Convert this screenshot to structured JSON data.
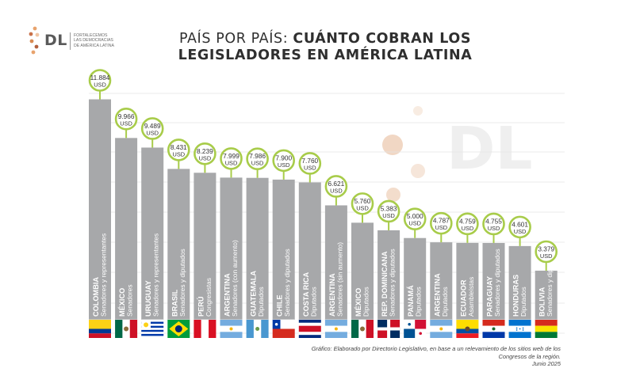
{
  "logo": {
    "mark": "DL",
    "lines": [
      "Fortalecemos",
      "las democracias",
      "de América Latina"
    ]
  },
  "title": {
    "light": "PAÍS POR PAÍS:",
    "bold_1": "CUÁNTO COBRAN LOS",
    "bold_2": "LEGISLADORES EN AMÉRICA LATINA"
  },
  "watermark": "DL",
  "footer": {
    "source": "Gráfico: Elaborado por Directorio Legislativo, en base a un relevamiento de los sitios web de los Congresos de la región.",
    "date": "Junio 2025"
  },
  "colors": {
    "bar": "#a7a8aa",
    "bubble_border": "#a8cc4a",
    "label_text": "#ffffff",
    "grid": "#e4e4e4"
  },
  "chart_data": {
    "type": "bar",
    "currency": "USD",
    "grid": true,
    "ylim": [
      0,
      12500
    ],
    "bars": [
      {
        "country": "COLOMBIA",
        "chamber": "Senadores y representantes",
        "value": 11884,
        "value_text": "11.884",
        "flag": "colombia-flag-icon"
      },
      {
        "country": "MÉXICO",
        "chamber": "Senadores",
        "value": 9966,
        "value_text": "9.966",
        "flag": "mexico-flag-icon"
      },
      {
        "country": "URUGUAY",
        "chamber": "Senadores y representantes",
        "value": 9489,
        "value_text": "9.489",
        "flag": "uruguay-flag-icon"
      },
      {
        "country": "BRASIL",
        "chamber": "Senadores y diputados",
        "value": 8431,
        "value_text": "8.431",
        "flag": "brasil-flag-icon"
      },
      {
        "country": "PERÚ",
        "chamber": "Congresistas",
        "value": 8239,
        "value_text": "8.239",
        "flag": "peru-flag-icon"
      },
      {
        "country": "ARGENTINA",
        "chamber": "Senadores (con aumento)",
        "value": 7999,
        "value_text": "7.999",
        "flag": "argentina-flag-icon"
      },
      {
        "country": "GUATEMALA",
        "chamber": "Diputados",
        "value": 7986,
        "value_text": "7.986",
        "flag": "guatemala-flag-icon"
      },
      {
        "country": "CHILE",
        "chamber": "Senadores y diputados",
        "value": 7900,
        "value_text": "7.900",
        "flag": "chile-flag-icon"
      },
      {
        "country": "COSTA RICA",
        "chamber": "Diputados",
        "value": 7760,
        "value_text": "7.760",
        "flag": "costa-rica-flag-icon"
      },
      {
        "country": "ARGENTINA",
        "chamber": "Senadores (sin aumento)",
        "value": 6621,
        "value_text": "6.621",
        "flag": "argentina-flag-icon"
      },
      {
        "country": "MÉXICO",
        "chamber": "Diputados",
        "value": 5760,
        "value_text": "5.760",
        "flag": "mexico-flag-icon"
      },
      {
        "country": "REP. DOMINICANA",
        "chamber": "Senadores y diputados",
        "value": 5383,
        "value_text": "5.383",
        "flag": "dominican-republic-flag-icon"
      },
      {
        "country": "PANAMÁ",
        "chamber": "Diputados",
        "value": 5000,
        "value_text": "5.000",
        "flag": "panama-flag-icon"
      },
      {
        "country": "ARGENTINA",
        "chamber": "Diputados",
        "value": 4787,
        "value_text": "4.787",
        "flag": "argentina-flag-icon"
      },
      {
        "country": "ECUADOR",
        "chamber": "Asambleístas",
        "value": 4759,
        "value_text": "4.759",
        "flag": "ecuador-flag-icon"
      },
      {
        "country": "PARAGUAY",
        "chamber": "Senadores y diputados",
        "value": 4755,
        "value_text": "4.755",
        "flag": "paraguay-flag-icon"
      },
      {
        "country": "HONDURAS",
        "chamber": "Diputados",
        "value": 4601,
        "value_text": "4.601",
        "flag": "honduras-flag-icon"
      },
      {
        "country": "BOLIVIA",
        "chamber": "Senadores y diputados",
        "value": 3379,
        "value_text": "3.379",
        "flag": "bolivia-flag-icon"
      }
    ]
  }
}
